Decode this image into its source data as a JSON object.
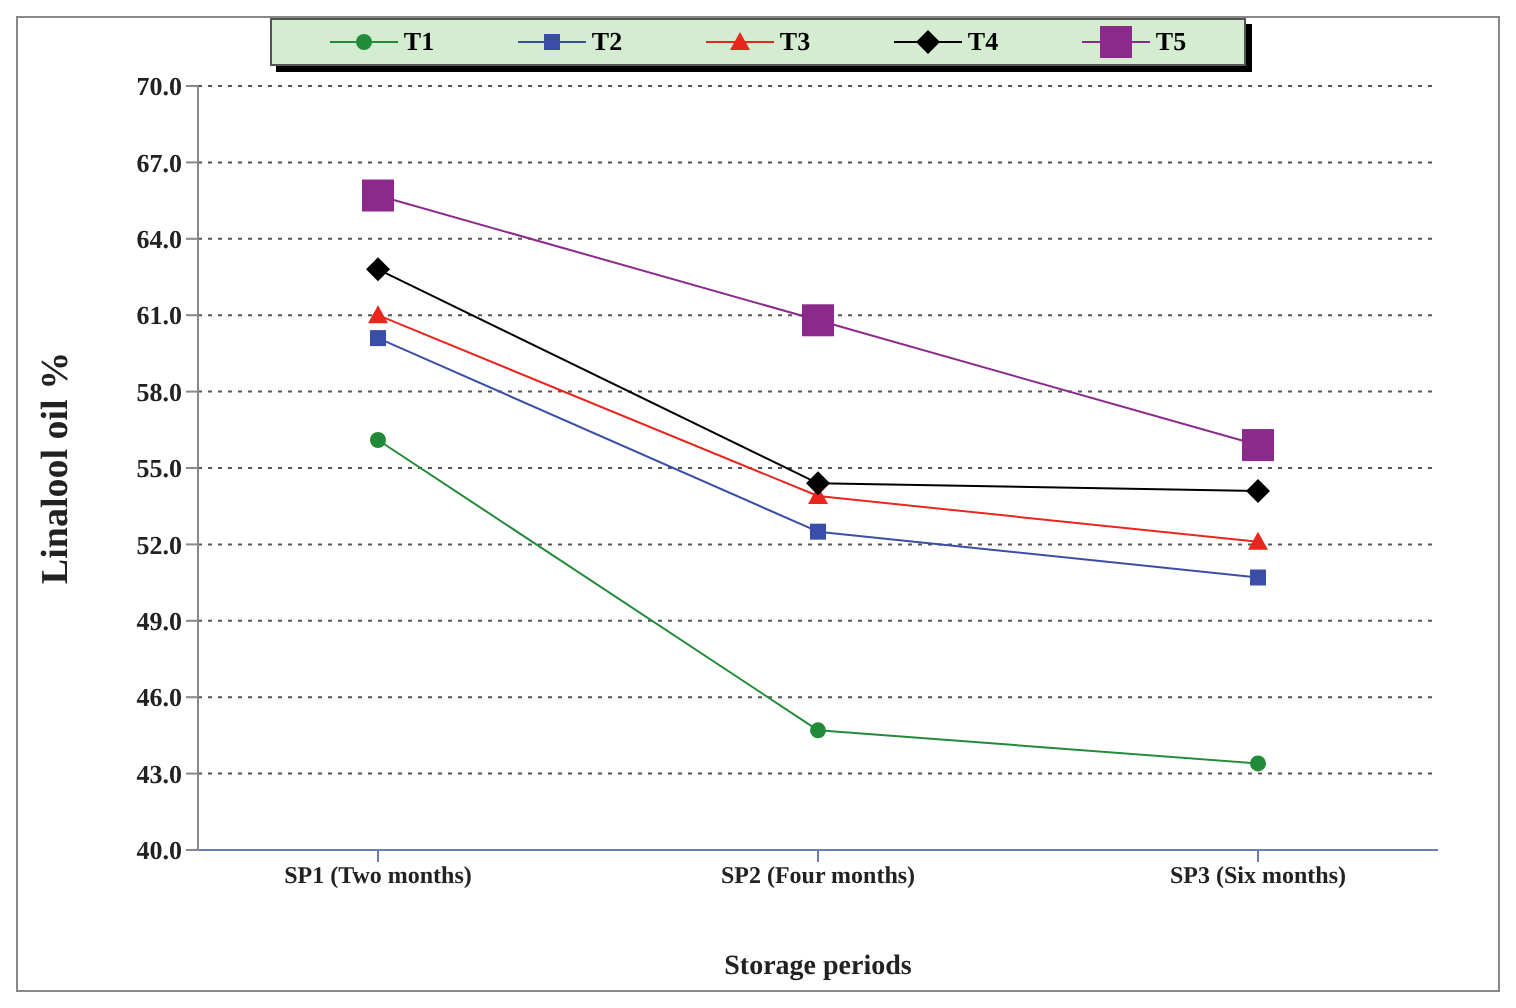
{
  "chart_data": {
    "type": "line",
    "xlabel": "Storage periods",
    "ylabel": "Linalool  oil %",
    "categories": [
      "SP1 (Two months)",
      "SP2 (Four months)",
      "SP3 (Six months)"
    ],
    "series": [
      {
        "name": "T1",
        "color": "#228b3a",
        "marker": "circle",
        "values": [
          56.1,
          44.7,
          43.4
        ]
      },
      {
        "name": "T2",
        "color": "#3a4ea8",
        "marker": "square",
        "values": [
          60.1,
          52.5,
          50.7
        ]
      },
      {
        "name": "T3",
        "color": "#e8261e",
        "marker": "triangle",
        "values": [
          61.0,
          53.9,
          52.1
        ]
      },
      {
        "name": "T4",
        "color": "#000000",
        "marker": "diamond",
        "values": [
          62.8,
          54.4,
          54.1
        ]
      },
      {
        "name": "T5",
        "color": "#8b2a8b",
        "marker": "square",
        "values": [
          65.7,
          60.8,
          55.9
        ]
      }
    ],
    "ylim": [
      40,
      70
    ],
    "yticks": [
      {
        "value": 40,
        "label": "40.0"
      },
      {
        "value": 43,
        "label": "43.0"
      },
      {
        "value": 46,
        "label": "46.0"
      },
      {
        "value": 49,
        "label": "49.0"
      },
      {
        "value": 52,
        "label": "52.0"
      },
      {
        "value": 55,
        "label": "55.0"
      },
      {
        "value": 58,
        "label": "58.0"
      },
      {
        "value": 61,
        "label": "61.0"
      },
      {
        "value": 64,
        "label": "64.0"
      },
      {
        "value": 67,
        "label": "67.0"
      },
      {
        "value": 70,
        "label": "70.0"
      }
    ],
    "grid": "y",
    "legend": "top",
    "line_style": "solid"
  }
}
